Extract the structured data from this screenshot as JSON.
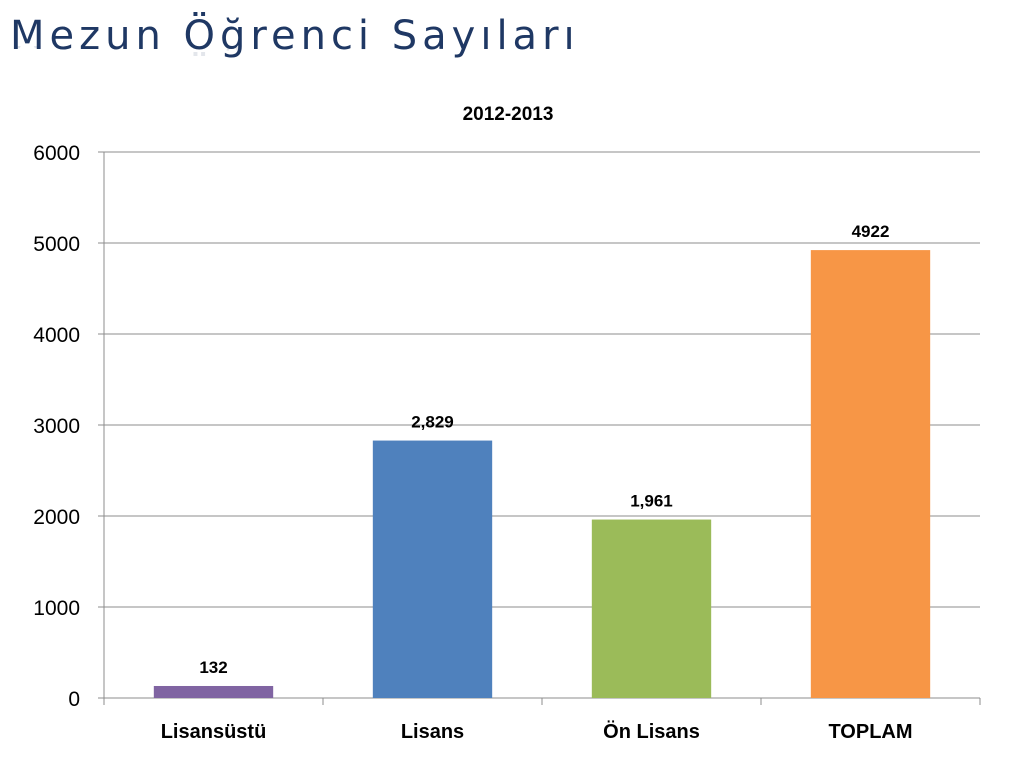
{
  "slide": {
    "title": "Mezun Öğrenci Sayıları",
    "title_color": "#1f3864"
  },
  "chart_data": {
    "type": "bar",
    "title": "2012-2013",
    "categories": [
      "Lisansüstü",
      "Lisans",
      "Ön Lisans",
      "TOPLAM"
    ],
    "values": [
      132,
      2829,
      1961,
      4922
    ],
    "data_labels": [
      "132",
      "2,829",
      "1,961",
      "4922"
    ],
    "colors": [
      "#8064a2",
      "#4f81bd",
      "#9bbb59",
      "#f79646"
    ],
    "ylim": [
      0,
      6000
    ],
    "yticks": [
      0,
      1000,
      2000,
      3000,
      4000,
      5000,
      6000
    ],
    "grid": true,
    "legend": "none",
    "xlabel": "",
    "ylabel": ""
  }
}
